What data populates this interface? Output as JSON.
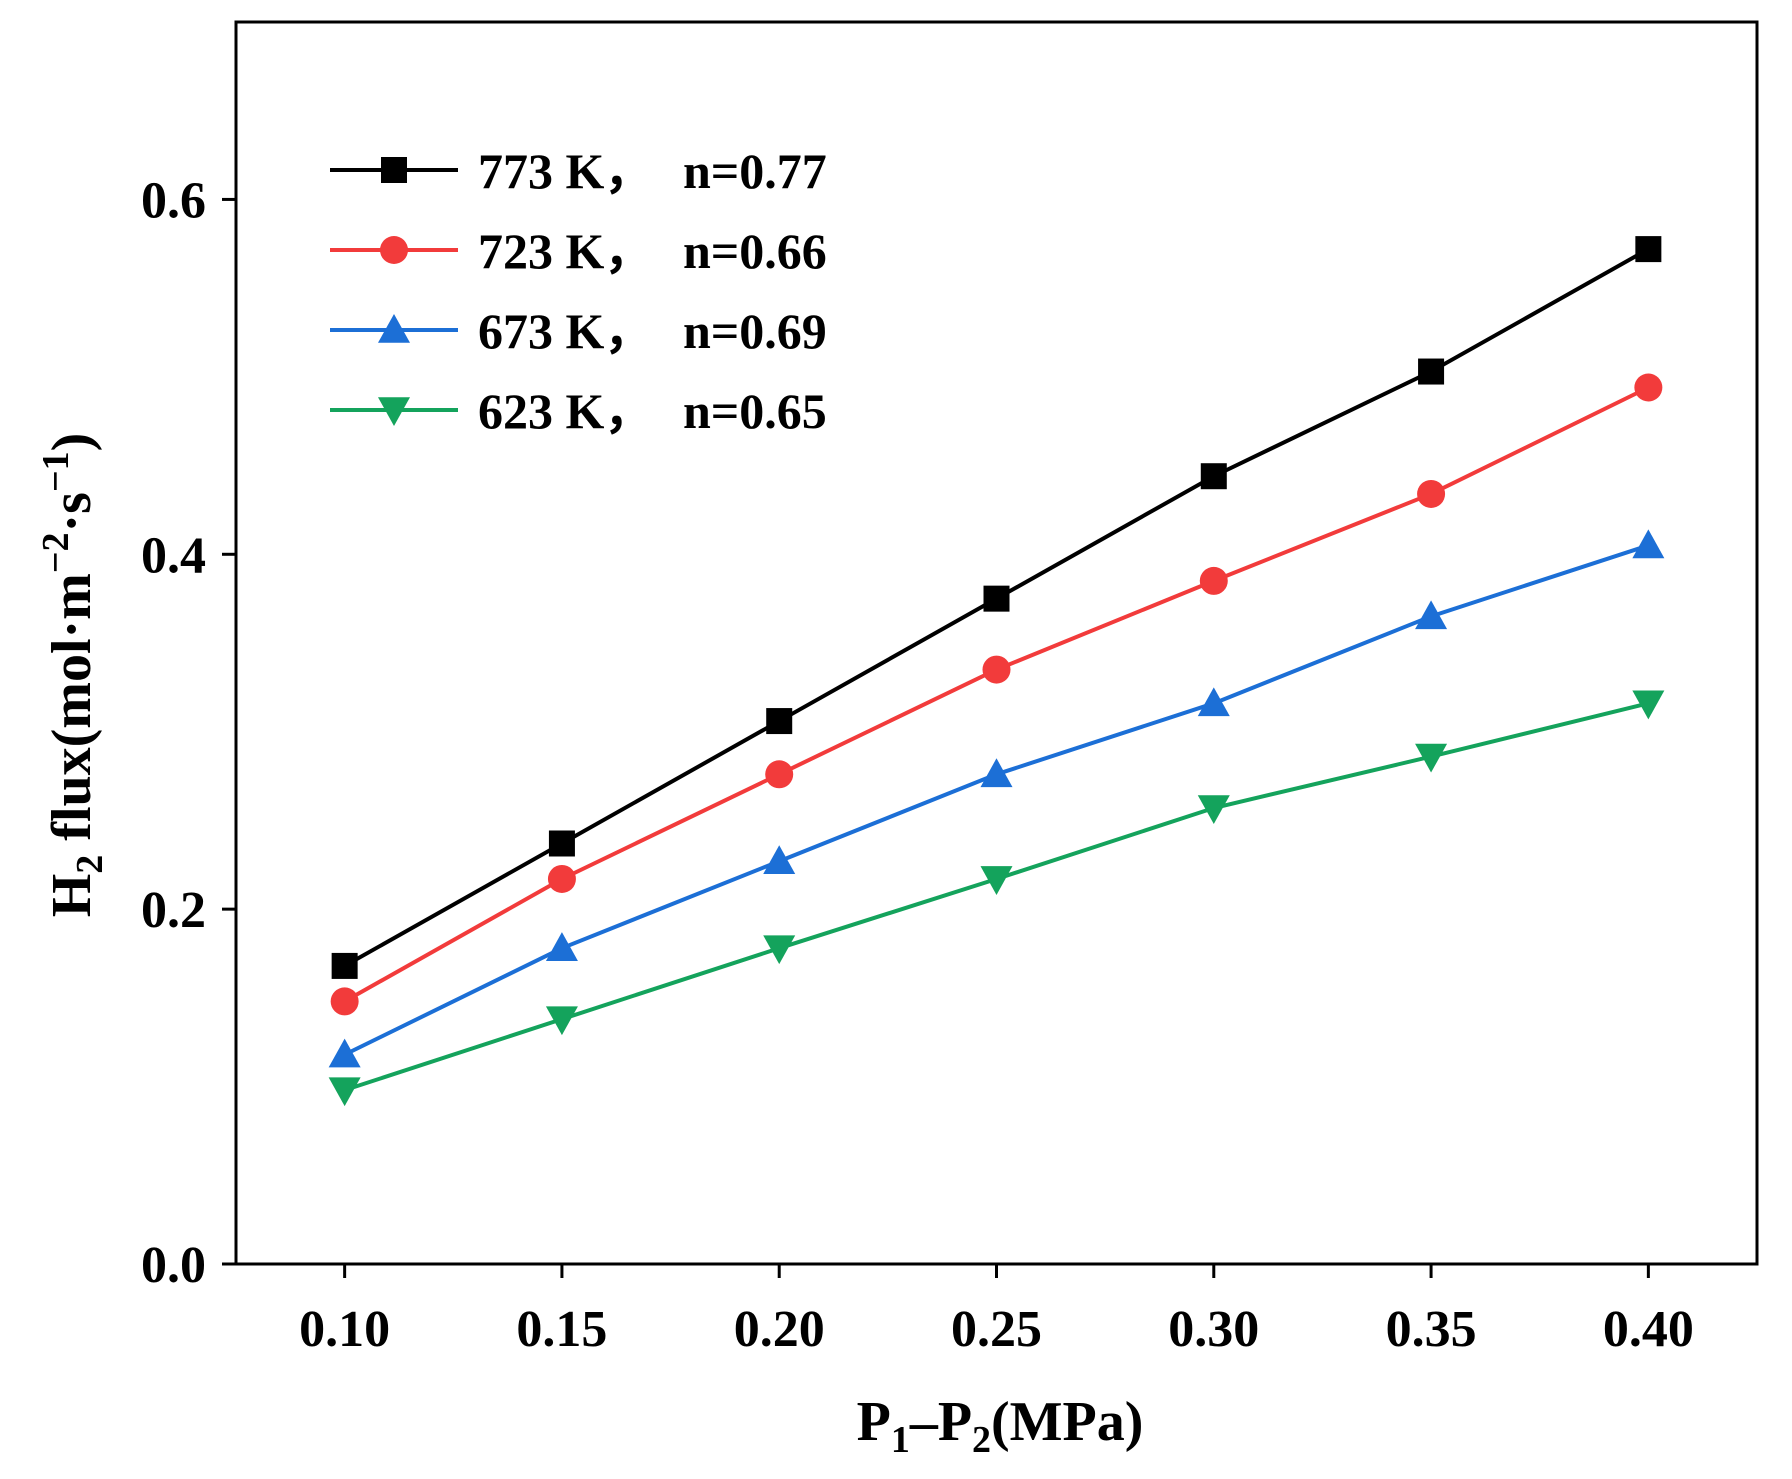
{
  "chart_data": {
    "type": "line",
    "title": "",
    "xlabel": {
      "parts": [
        "P",
        "1",
        "–P",
        "2",
        "(MPa)"
      ]
    },
    "ylabel": {
      "parts": [
        "H",
        "2",
        " flux(mol·m",
        "−2",
        "·s",
        "−1",
        ")"
      ]
    },
    "x": [
      0.1,
      0.15,
      0.2,
      0.25,
      0.3,
      0.35,
      0.4
    ],
    "xticks": [
      "0.10",
      "0.15",
      "0.20",
      "0.25",
      "0.30",
      "0.35",
      "0.40"
    ],
    "xlim": [
      0.075,
      0.425
    ],
    "yticks": [
      "0.0",
      "0.2",
      "0.4",
      "0.6"
    ],
    "ytick_values": [
      0.0,
      0.2,
      0.4,
      0.6
    ],
    "ylim": [
      0.0,
      0.7
    ],
    "grid": false,
    "legend_position": "top-left",
    "series": [
      {
        "name": "773 K，n=0.77",
        "temp_label": "773 K，",
        "n_label": "n=0.77",
        "color": "#000000",
        "marker": "square",
        "values": [
          0.168,
          0.237,
          0.306,
          0.375,
          0.444,
          0.503,
          0.572
        ]
      },
      {
        "name": "723 K，n=0.66",
        "temp_label": "723 K，",
        "n_label": "n=0.66",
        "color": "#f23b3b",
        "marker": "circle",
        "values": [
          0.148,
          0.217,
          0.276,
          0.335,
          0.385,
          0.434,
          0.494
        ]
      },
      {
        "name": "673 K，n=0.69",
        "temp_label": "673 K，",
        "n_label": "n=0.69",
        "color": "#1c6fd6",
        "marker": "triangle-up",
        "values": [
          0.118,
          0.178,
          0.227,
          0.276,
          0.316,
          0.365,
          0.405
        ]
      },
      {
        "name": "623 K，n=0.65",
        "temp_label": "623 K，",
        "n_label": "n=0.65",
        "color": "#14a35c",
        "marker": "triangle-down",
        "values": [
          0.098,
          0.138,
          0.178,
          0.217,
          0.257,
          0.286,
          0.316
        ]
      }
    ]
  }
}
